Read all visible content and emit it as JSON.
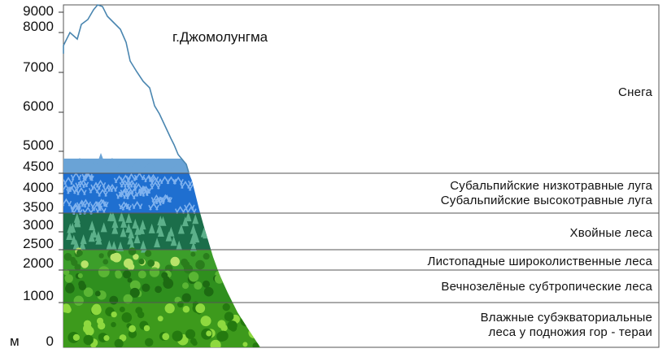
{
  "diagram": {
    "peak_name": "г.Джомолунгма",
    "unit": "м",
    "y_ticks": [
      "9000",
      "8000",
      "7000",
      "6000",
      "5000",
      "4500",
      "4000",
      "3500",
      "3000",
      "2500",
      "2000",
      "1000",
      "0"
    ],
    "zones": [
      {
        "id": "snow",
        "label": "Снега"
      },
      {
        "id": "low-meadows",
        "label": "Субальпийские низкотравные луга"
      },
      {
        "id": "high-meadows",
        "label": "Субальпийские высокотравные луга"
      },
      {
        "id": "conifer",
        "label": "Хвойные леса"
      },
      {
        "id": "deciduous",
        "label": "Листопадные широколиственные леса"
      },
      {
        "id": "evergreen",
        "label": "Вечнозелёные субтропические леса"
      },
      {
        "id": "terai-1",
        "label": "Влажные субэкваториальные"
      },
      {
        "id": "terai-2",
        "label": "леса у подножия гор - тераи"
      }
    ],
    "colors": {
      "snow_outline": "#4a86b0",
      "ice": "#6aa3d6",
      "meadow": "#1f6fd0",
      "meadow_plant": "#7fb2ef",
      "conifer": "#1b6e4a",
      "conifer_tree": "#5cb08a",
      "deciduous": "#3c9e2a",
      "deciduous_top": "#b9e36a",
      "evergreen": "#2f8f1e",
      "terai": "#3d9a1c",
      "terai_plant": "#8ed93f"
    }
  }
}
